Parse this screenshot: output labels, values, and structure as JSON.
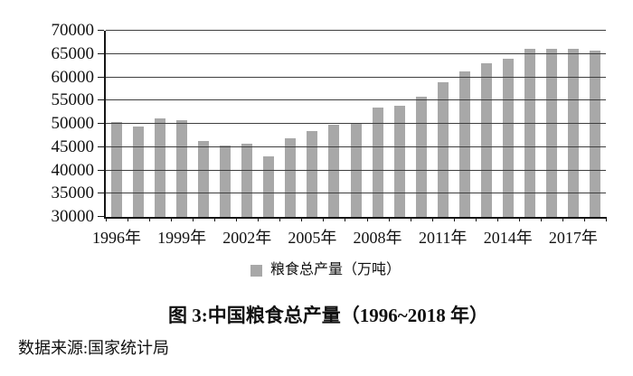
{
  "chart_data": {
    "type": "bar",
    "title": "图 3:中国粮食总产量（1996~2018 年）",
    "legend_label": "粮食总产量（万吨）",
    "source": "数据来源:国家统计局",
    "years": [
      1996,
      1997,
      1998,
      1999,
      2000,
      2001,
      2002,
      2003,
      2004,
      2005,
      2006,
      2007,
      2008,
      2009,
      2010,
      2011,
      2012,
      2013,
      2014,
      2015,
      2016,
      2017,
      2018
    ],
    "values": [
      50454,
      49417,
      51230,
      50839,
      46218,
      45264,
      45706,
      43070,
      46947,
      48402,
      49804,
      50160,
      53434,
      53941,
      55911,
      58849,
      61223,
      63048,
      63965,
      66060,
      66044,
      66161,
      65789
    ],
    "x_tick_labels": [
      "1996年",
      "1999年",
      "2002年",
      "2005年",
      "2008年",
      "2011年",
      "2014年",
      "2017年"
    ],
    "x_label_every": 3,
    "y_tick_labels": [
      "30000",
      "35000",
      "40000",
      "45000",
      "50000",
      "55000",
      "60000",
      "65000",
      "70000"
    ],
    "ylim": [
      30000,
      70000
    ],
    "ytick_step": 5000,
    "grid": "on",
    "legend_position": "bottom",
    "bar_color": "#a8a8a8",
    "gridline_color": "#3f3f3f",
    "axis_color": "#161616"
  }
}
